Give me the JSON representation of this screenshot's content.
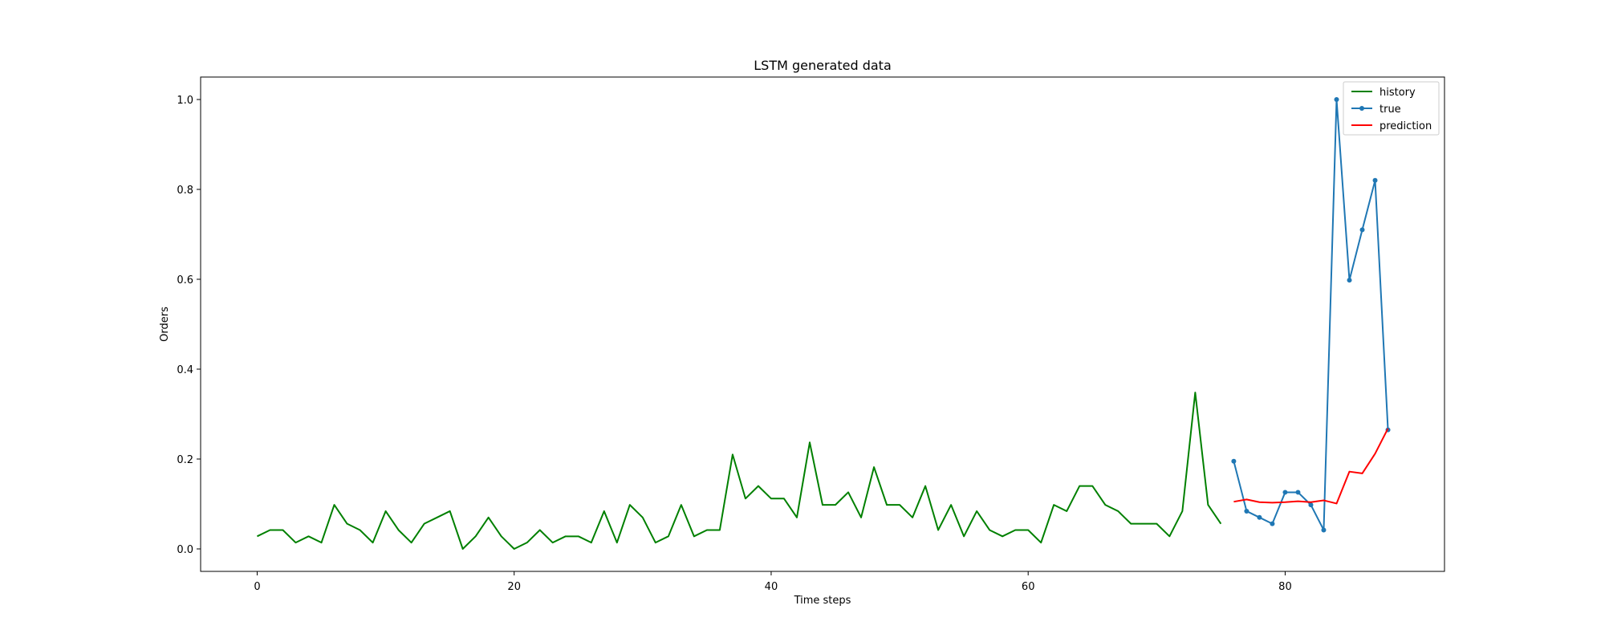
{
  "chart_data": {
    "type": "line",
    "title": "LSTM generated data",
    "xlabel": "Time steps",
    "ylabel": "Orders",
    "xlim": [
      -4.4,
      92.4
    ],
    "ylim": [
      -0.05,
      1.05
    ],
    "xticks": [
      0,
      20,
      40,
      60,
      80
    ],
    "yticks": [
      0.0,
      0.2,
      0.4,
      0.6,
      0.8,
      1.0
    ],
    "xtick_labels": [
      "0",
      "20",
      "40",
      "60",
      "80"
    ],
    "ytick_labels": [
      "0.0",
      "0.2",
      "0.4",
      "0.6",
      "0.8",
      "1.0"
    ],
    "grid": false,
    "legend_position": "top-right",
    "series": [
      {
        "name": "history",
        "color": "#008000",
        "marker": "none",
        "x": [
          0,
          1,
          2,
          3,
          4,
          5,
          6,
          7,
          8,
          9,
          10,
          11,
          12,
          13,
          14,
          15,
          16,
          17,
          18,
          19,
          20,
          21,
          22,
          23,
          24,
          25,
          26,
          27,
          28,
          29,
          30,
          31,
          32,
          33,
          34,
          35,
          36,
          37,
          38,
          39,
          40,
          41,
          42,
          43,
          44,
          45,
          46,
          47,
          48,
          49,
          50,
          51,
          52,
          53,
          54,
          55,
          56,
          57,
          58,
          59,
          60,
          61,
          62,
          63,
          64,
          65,
          66,
          67,
          68,
          69,
          70,
          71,
          72,
          73,
          74,
          75
        ],
        "y": [
          0.028,
          0.042,
          0.042,
          0.014,
          0.028,
          0.014,
          0.098,
          0.056,
          0.042,
          0.014,
          0.084,
          0.042,
          0.014,
          0.056,
          0.07,
          0.084,
          0.0,
          0.028,
          0.07,
          0.028,
          0.0,
          0.014,
          0.042,
          0.014,
          0.028,
          0.028,
          0.014,
          0.084,
          0.014,
          0.098,
          0.07,
          0.014,
          0.028,
          0.098,
          0.028,
          0.042,
          0.042,
          0.21,
          0.112,
          0.14,
          0.112,
          0.112,
          0.07,
          0.237,
          0.098,
          0.098,
          0.126,
          0.07,
          0.182,
          0.098,
          0.098,
          0.07,
          0.14,
          0.042,
          0.098,
          0.028,
          0.084,
          0.042,
          0.028,
          0.042,
          0.042,
          0.014,
          0.098,
          0.084,
          0.14,
          0.14,
          0.098,
          0.084,
          0.056,
          0.056,
          0.056,
          0.028,
          0.084,
          0.348,
          0.098,
          0.056
        ]
      },
      {
        "name": "true",
        "color": "#1f77b4",
        "marker": "dot",
        "x": [
          76,
          77,
          78,
          79,
          80,
          81,
          82,
          83,
          84,
          85,
          86,
          87,
          88
        ],
        "y": [
          0.195,
          0.084,
          0.07,
          0.056,
          0.126,
          0.126,
          0.098,
          0.042,
          1.0,
          0.598,
          0.71,
          0.82,
          0.265
        ]
      },
      {
        "name": "prediction",
        "color": "#ff0000",
        "marker": "none",
        "x": [
          76,
          77,
          78,
          79,
          80,
          81,
          82,
          83,
          84,
          85,
          86,
          87,
          88
        ],
        "y": [
          0.105,
          0.11,
          0.104,
          0.103,
          0.104,
          0.106,
          0.104,
          0.108,
          0.101,
          0.172,
          0.168,
          0.212,
          0.268
        ]
      }
    ]
  }
}
